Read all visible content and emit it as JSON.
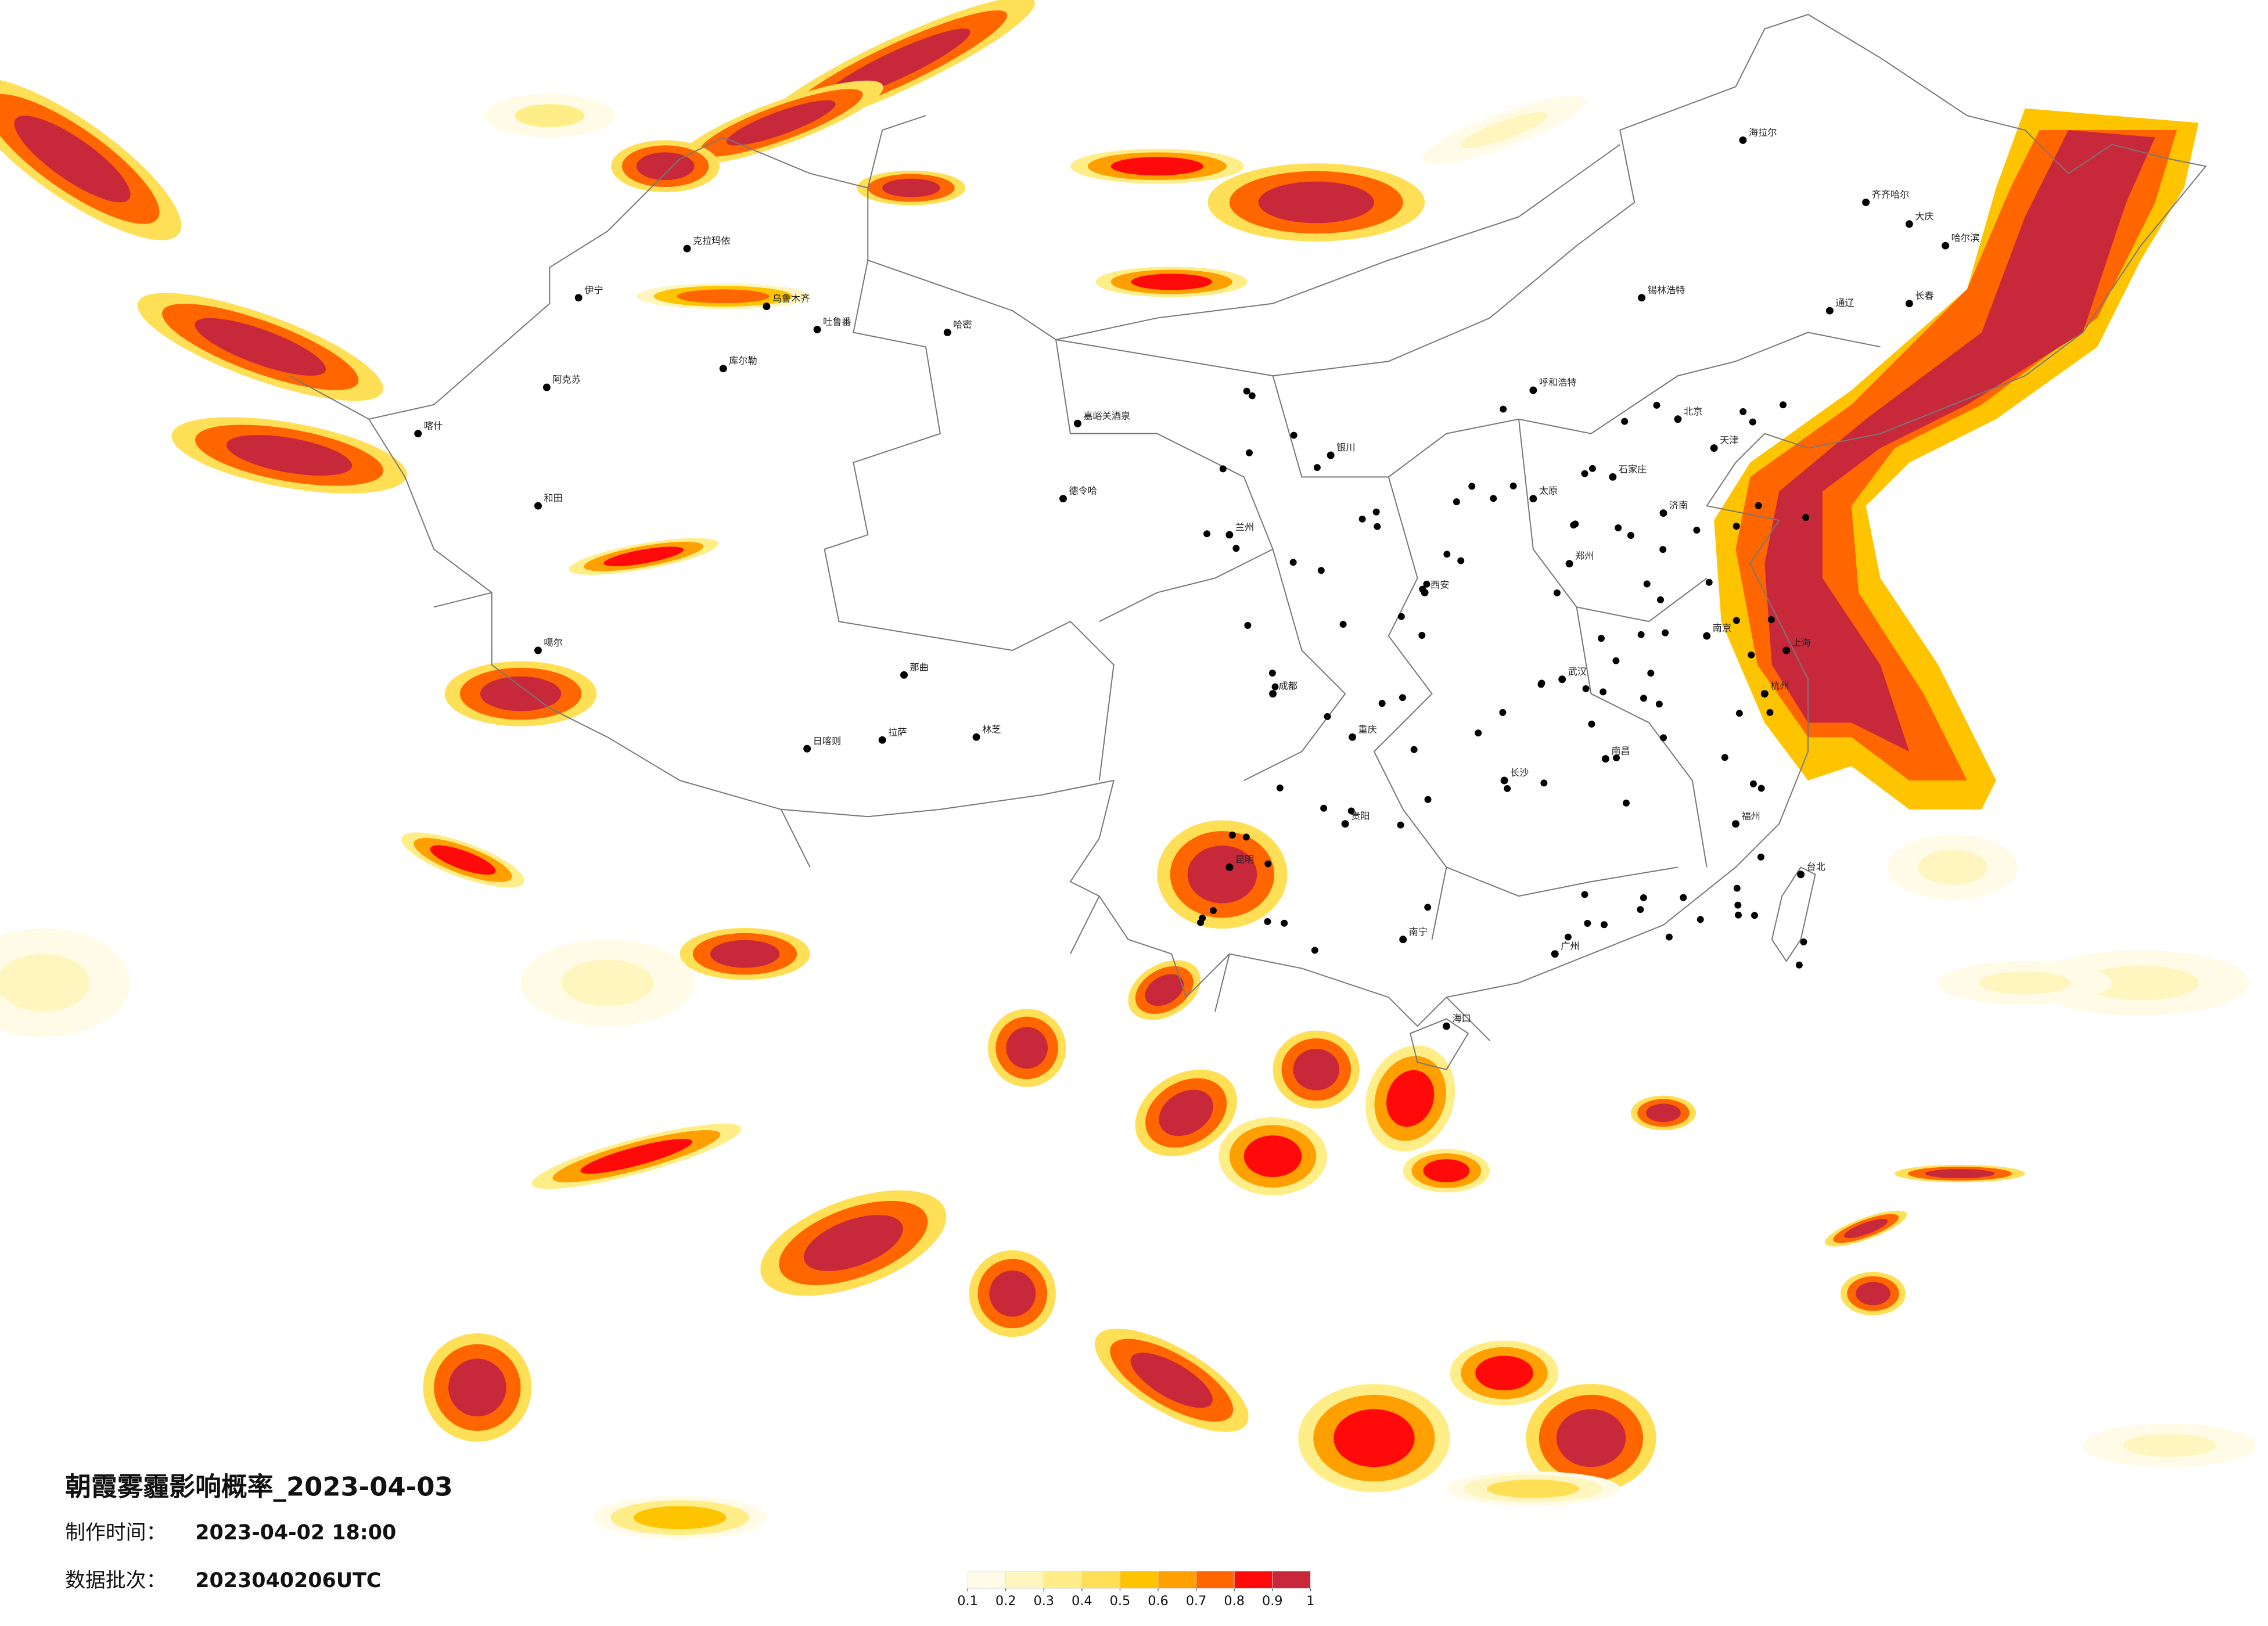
{
  "title": "朝霞雾霾影响概率_2023-04-03",
  "production_time": {
    "label": "制作时间：",
    "value": "2023-04-02 18:00"
  },
  "batch": {
    "label": "数据批次：",
    "value": "2023040206UTC"
  },
  "legend": {
    "colors": [
      "#fffbe6",
      "#fff6bf",
      "#ffee88",
      "#ffdf55",
      "#ffc400",
      "#ff9f00",
      "#ff6600",
      "#ff0a0a",
      "#c7293b"
    ],
    "ticks": [
      0.1,
      0.2,
      0.3,
      0.4,
      0.5,
      0.6,
      0.7,
      0.8,
      0.9,
      1
    ]
  },
  "cities": [
    "克拉玛依",
    "乌鲁木齐",
    "吐鲁番",
    "伊宁",
    "阿克苏",
    "喀什",
    "和田",
    "库尔勒",
    "哈密",
    "嘉峪关酒泉",
    "德令哈",
    "噶尔",
    "那曲",
    "日喀则",
    "拉萨",
    "林芝",
    "海拉尔",
    "齐齐哈尔",
    "大庆",
    "哈尔滨",
    "长春",
    "通辽",
    "锡林浩特",
    "呼和浩特",
    "北京",
    "天津",
    "石家庄",
    "太原",
    "济南",
    "郑州",
    "西安",
    "兰州",
    "银川",
    "成都",
    "重庆",
    "贵阳",
    "昆明",
    "南宁",
    "广州",
    "长沙",
    "武汉",
    "南昌",
    "南京",
    "上海",
    "杭州",
    "福州",
    "台北",
    "海口"
  ]
}
